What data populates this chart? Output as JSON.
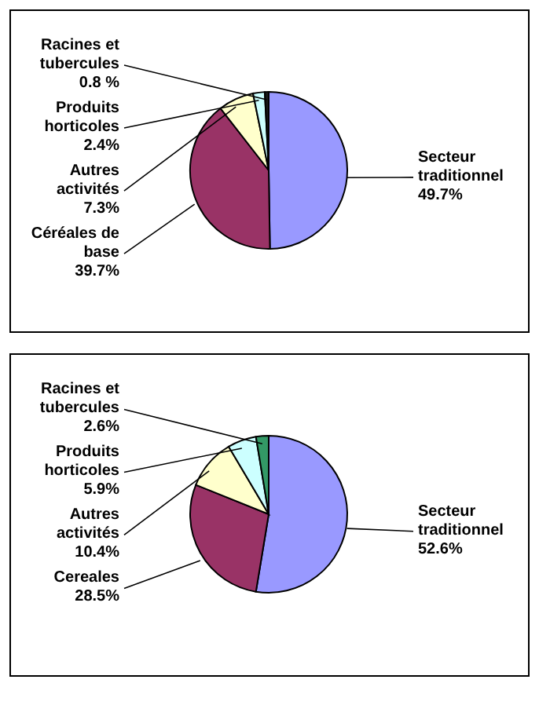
{
  "chart_data": [
    {
      "type": "pie",
      "categories": [
        "Secteur traditionnel",
        "Céréales de base",
        "Autres activités",
        "Produits horticoles",
        "Racines et tubercules"
      ],
      "values": [
        49.7,
        39.7,
        7.3,
        2.4,
        0.8
      ],
      "value_labels": [
        "49.7%",
        "39.7%",
        "7.3%",
        "2.4%",
        "0.8 %"
      ],
      "colors": [
        "#9999ff",
        "#993366",
        "#ffffcc",
        "#ccffff",
        "#1a1a1a"
      ],
      "legend": false
    },
    {
      "type": "pie",
      "categories": [
        "Secteur traditionnel",
        "Cereales",
        "Autres activités",
        "Produits horticoles",
        "Racines et tubercules"
      ],
      "values": [
        52.6,
        28.5,
        10.4,
        5.9,
        2.6
      ],
      "value_labels": [
        "52.6%",
        "28.5%",
        "10.4%",
        "5.9%",
        "2.6%"
      ],
      "colors": [
        "#9999ff",
        "#993366",
        "#ffffcc",
        "#ccffff",
        "#339966"
      ],
      "legend": false
    }
  ]
}
